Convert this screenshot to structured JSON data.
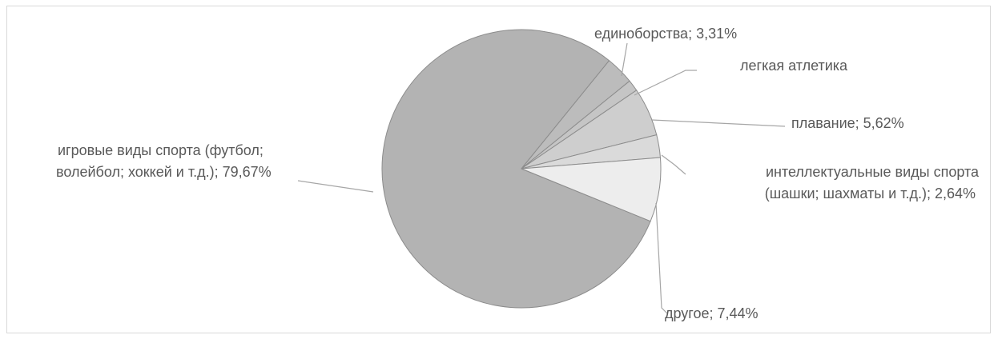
{
  "chart_data": {
    "type": "pie",
    "title": "",
    "slices": [
      {
        "label_lines": [
          "игровые виды спорта (футбол;",
          "волейбол; хоккей и т.д.); 79,67%"
        ],
        "value": 79.67,
        "color": "#b3b3b3"
      },
      {
        "label_lines": [
          "единоборства; 3,31%"
        ],
        "value": 3.31,
        "color": "#bcbcbc"
      },
      {
        "label_lines": [
          "легкая атлетика"
        ],
        "value": 1.32,
        "color": "#c5c5c5"
      },
      {
        "label_lines": [
          "плавание; 5,62%"
        ],
        "value": 5.62,
        "color": "#cecece"
      },
      {
        "label_lines": [
          "интеллектуальные виды спорта",
          "(шашки; шахматы и т.д.); 2,64%"
        ],
        "value": 2.64,
        "color": "#dadada"
      },
      {
        "label_lines": [
          "другое; 7,44%"
        ],
        "value": 7.44,
        "color": "#ededed"
      }
    ]
  }
}
